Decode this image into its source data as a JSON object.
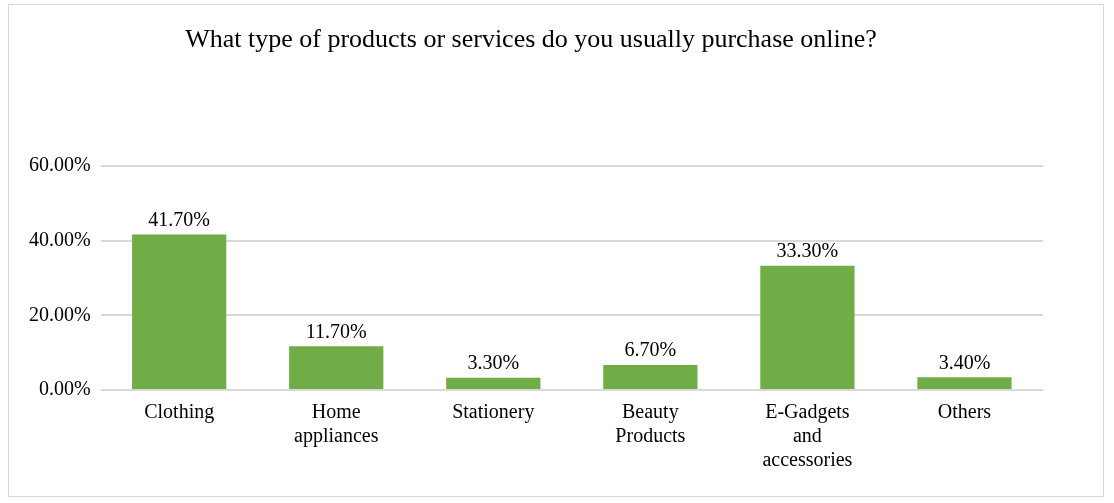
{
  "chart_data": {
    "type": "bar",
    "title": "What type of products or services do you usually purchase online?",
    "categories": [
      "Clothing",
      "Home appliances",
      "Stationery",
      "Beauty Products",
      "E-Gadgets and accessories",
      "Others"
    ],
    "values": [
      41.7,
      11.7,
      3.3,
      6.7,
      33.3,
      3.4
    ],
    "value_labels": [
      "41.70%",
      "11.70%",
      "3.30%",
      "6.70%",
      "33.30%",
      "3.40%"
    ],
    "color": "#70ad47",
    "ylim": [
      0,
      60
    ],
    "yticks": [
      {
        "value": 0,
        "label": "0.00%"
      },
      {
        "value": 20,
        "label": "20.00%"
      },
      {
        "value": 40,
        "label": "40.00%"
      },
      {
        "value": 60,
        "label": "60.00%"
      }
    ],
    "grid": "y",
    "legend": false
  }
}
